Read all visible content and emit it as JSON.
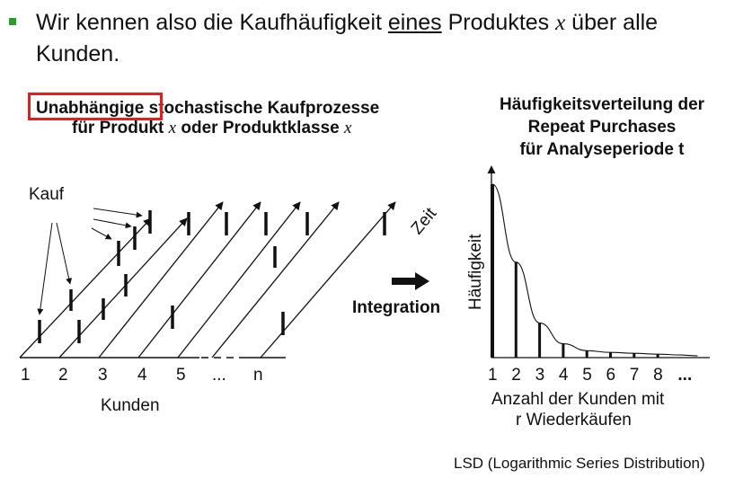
{
  "bullet": {
    "part1": "Wir kennen also die Kaufhäufigkeit ",
    "underlined": "eines",
    "part2": " Produktes ",
    "var": "x",
    "part3": " über alle Kunden."
  },
  "left_diagram": {
    "title_highlight": "Unabhängige",
    "title_rest": " stochastische Kaufprozesse",
    "title_line2a": "für Produkt ",
    "title_var": "x",
    "title_line2b": "  oder Produktklasse ",
    "title_var2": "x",
    "kauf_label": "Kauf",
    "zeit_label": "Zeit",
    "kunden_label": "Kunden",
    "customer_ticks": [
      "1",
      "2",
      "3",
      "4",
      "5",
      "...",
      "n"
    ]
  },
  "integration_label": "Integration",
  "right_diagram": {
    "title_lines": [
      "Häufigkeitsverteilung der",
      "Repeat Purchases",
      "für Analyseperiode t"
    ],
    "ylabel": "Häufigkeit",
    "xlabel_lines": [
      "Anzahl der Kunden mit",
      "r Wiederkäufen"
    ]
  },
  "chart_data": {
    "type": "bar",
    "categories": [
      "1",
      "2",
      "3",
      "4",
      "5",
      "6",
      "7",
      "8",
      "..."
    ],
    "values": [
      100,
      55,
      20,
      8,
      4,
      3,
      2.5,
      2,
      1.5
    ],
    "title": "Häufigkeitsverteilung der Repeat Purchases für Analyseperiode t",
    "xlabel": "Anzahl der Kunden mit r Wiederkäufen",
    "ylabel": "Häufigkeit",
    "ylim": [
      0,
      110
    ],
    "fitted_curve": "LSD"
  },
  "footer": "LSD (Logarithmic Series Distribution)",
  "colors": {
    "bullet": "#2e9a2e",
    "highlight_box": "#e02020"
  }
}
